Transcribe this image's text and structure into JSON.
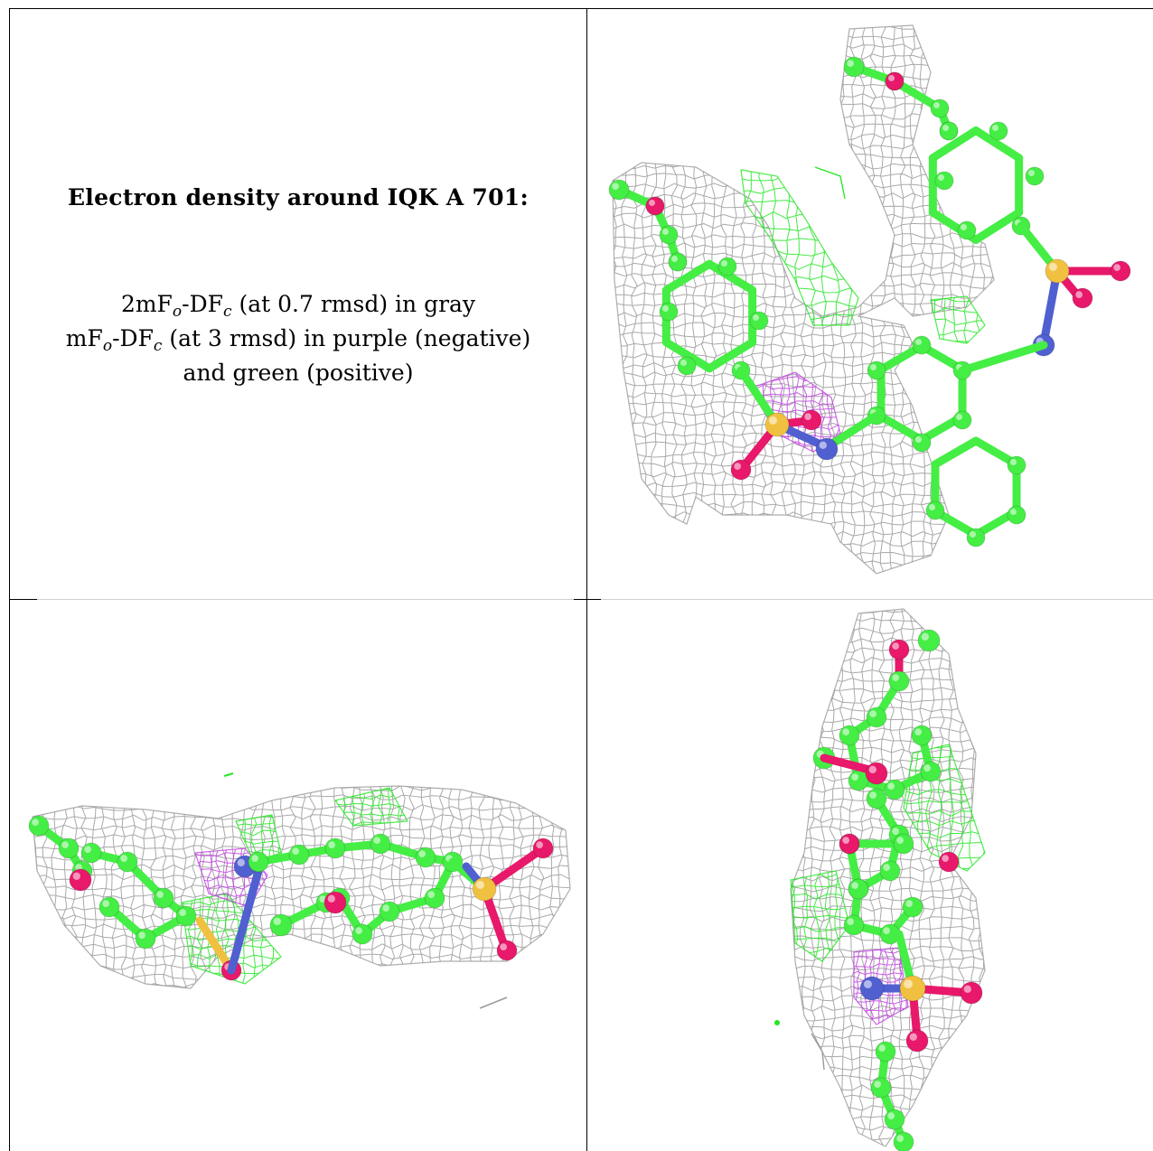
{
  "title": "Electron density around IQK A 701:",
  "legend": {
    "line1": {
      "a": "2mF",
      "a_sub": "o",
      "b": "-DF",
      "b_sub": "c",
      "rest": " (at 0.7 rmsd) in gray"
    },
    "line2": {
      "a": "mF",
      "a_sub": "o",
      "b": "-DF",
      "b_sub": "c",
      "rest": " (at 3 rmsd) in purple (negative)"
    },
    "line3": "and green (positive)"
  },
  "colors": {
    "mesh_2fofc": "#9a9a9a",
    "mesh_positive": "#22e622",
    "mesh_negative": "#c040e0",
    "carbon": "#44ee44",
    "oxygen": "#e8186a",
    "nitrogen": "#5060d0",
    "sulfur": "#f0c040"
  },
  "views": [
    "view-top-right",
    "view-bottom-left",
    "view-bottom-right"
  ]
}
